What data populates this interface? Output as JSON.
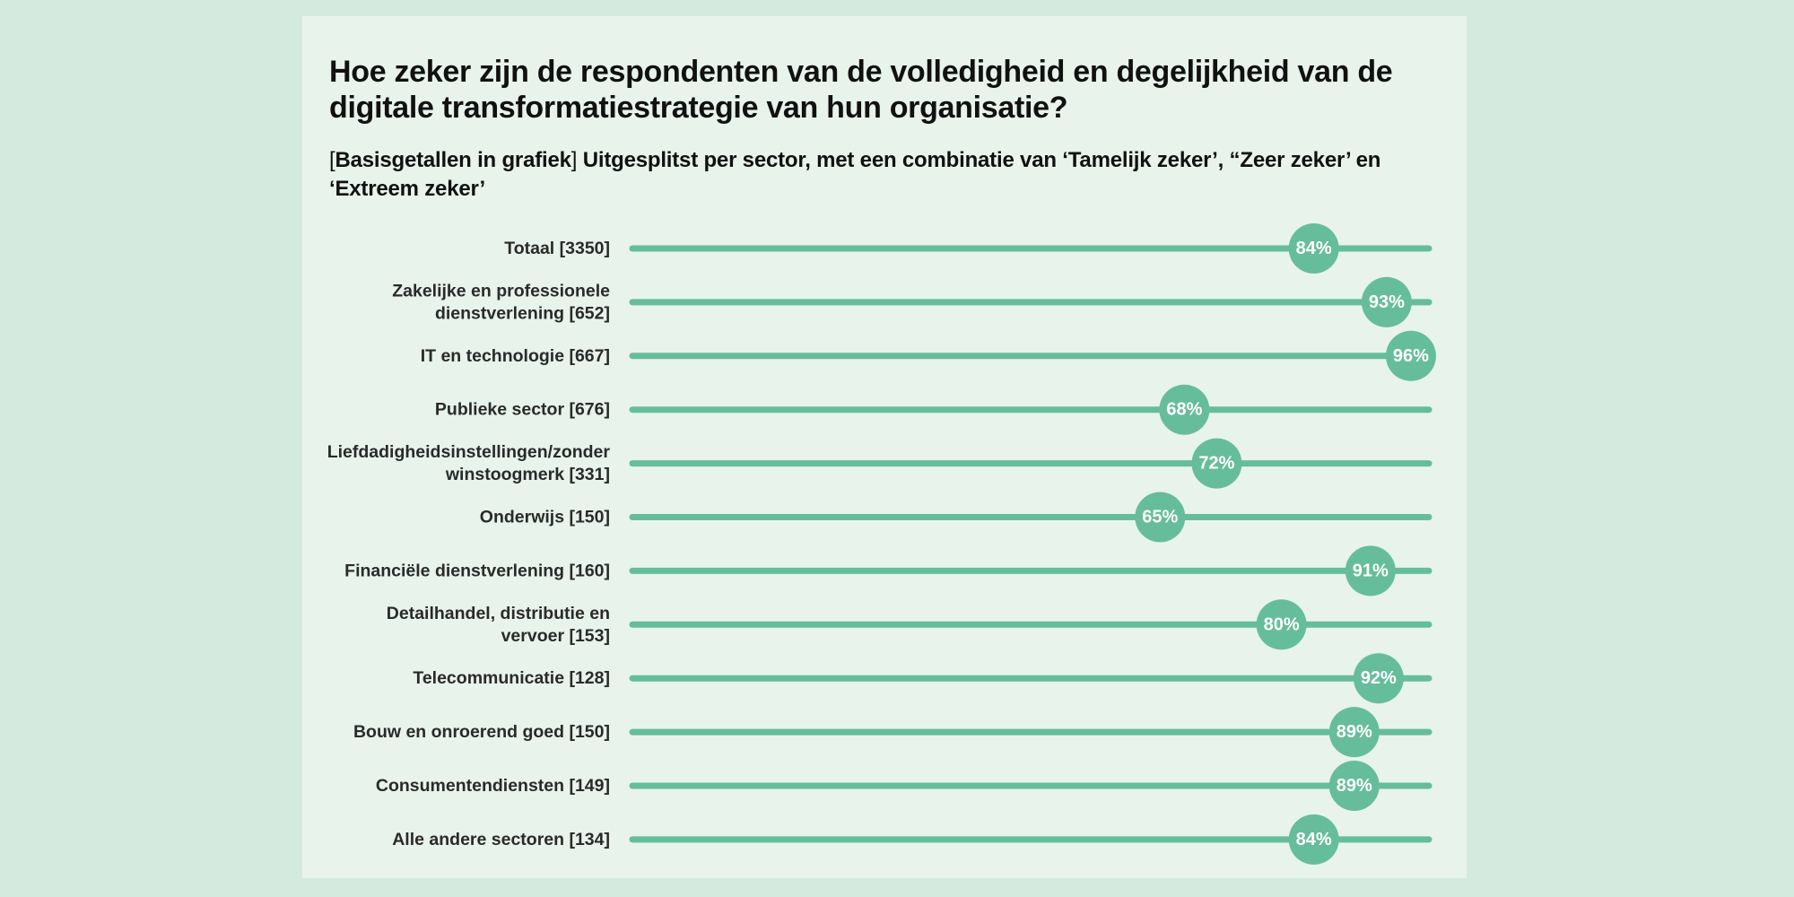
{
  "title": "Hoe zeker zijn de respondenten van de volledigheid en degelijkheid van de digitale transformatiestrategie van hun organisatie?",
  "subtitle": {
    "bracket_open": "[",
    "bracket_text": "Basisgetallen in grafiek",
    "bracket_close": "]",
    "text": " Uitgesplitst per sector, met een combinatie van ‘Tamelijk zeker’, “Zeer zeker’ en ‘Extreem zeker’"
  },
  "colors": {
    "accent": "#66bd9c",
    "background": "#d5eade",
    "card": "#e8f3ec",
    "text": "#111111",
    "label": "#2a2a2a",
    "bubble_text": "#ffffff"
  },
  "chart_data": {
    "type": "dot",
    "ylim": [
      0,
      100
    ],
    "categories": [
      [
        "Totaal [3350]"
      ],
      [
        "Zakelijke en professionele",
        "dienstverlening [652]"
      ],
      [
        "IT en technologie [667]"
      ],
      [
        "Publieke sector [676]"
      ],
      [
        "Liefdadigheidsinstellingen/zonder",
        "winstoogmerk [331]"
      ],
      [
        "Onderwijs [150]"
      ],
      [
        "Financiële dienstverlening [160]"
      ],
      [
        "Detailhandel, distributie en",
        "vervoer [153]"
      ],
      [
        "Telecommunicatie [128]"
      ],
      [
        "Bouw en onroerend goed [150]"
      ],
      [
        "Consumentendiensten [149]"
      ],
      [
        "Alle andere sectoren [134]"
      ]
    ],
    "values": [
      84,
      93,
      96,
      68,
      72,
      65,
      91,
      80,
      92,
      89,
      89,
      84
    ],
    "value_labels": [
      "84%",
      "93%",
      "96%",
      "68%",
      "72%",
      "65%",
      "91%",
      "80%",
      "92%",
      "89%",
      "89%",
      "84%"
    ]
  }
}
